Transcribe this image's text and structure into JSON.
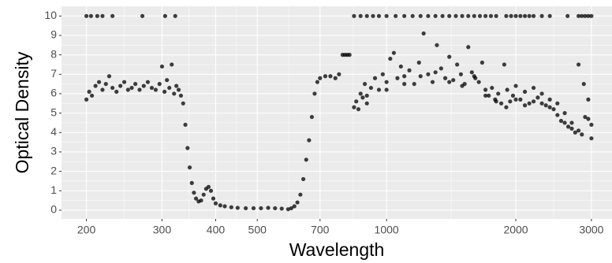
{
  "chart_data": {
    "type": "scatter",
    "x_label": "Wavelength",
    "y_label": "Optical Density",
    "xlog": true,
    "grid": true,
    "color": "#000000",
    "opacity": 0.75,
    "xlim": [
      175,
      3350
    ],
    "ylim": [
      -0.45,
      10.5
    ],
    "xticks": [
      200,
      300,
      400,
      500,
      700,
      1000,
      2000,
      3000
    ],
    "yticks": [
      0,
      1,
      2,
      3,
      4,
      5,
      6,
      7,
      8,
      9,
      10
    ],
    "x": [
      200,
      203,
      206,
      210,
      214,
      218,
      222,
      226,
      230,
      235,
      240,
      245,
      250,
      255,
      260,
      266,
      272,
      278,
      284,
      290,
      296,
      300,
      304,
      308,
      312,
      316,
      320,
      324,
      328,
      332,
      200,
      205,
      212,
      218,
      230,
      270,
      305,
      322,
      336,
      340,
      344,
      348,
      352,
      356,
      360,
      365,
      370,
      375,
      380,
      385,
      390,
      395,
      400,
      410,
      420,
      435,
      450,
      470,
      490,
      510,
      530,
      550,
      570,
      590,
      600,
      610,
      620,
      630,
      640,
      650,
      660,
      670,
      680,
      690,
      700,
      720,
      740,
      760,
      775,
      790,
      800,
      810,
      820,
      840,
      870,
      900,
      930,
      960,
      1000,
      1050,
      1100,
      1150,
      1200,
      1250,
      1300,
      1350,
      1400,
      1450,
      1500,
      1550,
      1600,
      1650,
      1700,
      1750,
      1800,
      1900,
      1950,
      2000,
      2050,
      2100,
      2150,
      2200,
      2300,
      2400,
      2640,
      2800,
      2850,
      2900,
      2950,
      3000,
      840,
      850,
      860,
      870,
      880,
      890,
      900,
      920,
      940,
      960,
      980,
      1000,
      1020,
      1040,
      1060,
      1080,
      1100,
      1130,
      1160,
      1190,
      1220,
      1250,
      1280,
      1310,
      1340,
      1370,
      1400,
      1430,
      1460,
      1490,
      1520,
      1550,
      1580,
      1610,
      1640,
      1670,
      1700,
      1730,
      1760,
      1790,
      1820,
      1850,
      1880,
      1910,
      1940,
      1970,
      2000,
      2050,
      2100,
      2150,
      2200,
      2250,
      2300,
      2350,
      2400,
      2450,
      2500,
      2550,
      2600,
      2650,
      2700,
      2750,
      2800,
      2850,
      2900,
      2950,
      3000,
      3000,
      2950,
      2880,
      900,
      1000,
      1100,
      1200,
      1300,
      1400,
      1500,
      1600,
      1700,
      1800,
      1900,
      2000,
      2100,
      2200,
      2300,
      2400,
      2500,
      2600,
      2700,
      2800
    ],
    "values": [
      5.7,
      6.1,
      5.9,
      6.4,
      6.6,
      6.2,
      6.5,
      6.9,
      6.3,
      6.1,
      6.4,
      6.6,
      6.2,
      6.3,
      6.5,
      6.2,
      6.4,
      6.6,
      6.3,
      6.2,
      6.5,
      7.4,
      6.1,
      6.7,
      6.3,
      7.5,
      6.0,
      6.4,
      6.2,
      5.9,
      10,
      10,
      10,
      10,
      10,
      10,
      10,
      10,
      5.5,
      4.4,
      3.2,
      2.2,
      1.4,
      0.9,
      0.6,
      0.45,
      0.5,
      0.8,
      1.1,
      1.2,
      1.0,
      0.6,
      0.35,
      0.25,
      0.2,
      0.15,
      0.12,
      0.1,
      0.1,
      0.1,
      0.12,
      0.1,
      0.08,
      0.05,
      0.1,
      0.2,
      0.4,
      0.8,
      1.6,
      2.6,
      3.6,
      4.8,
      6.0,
      6.6,
      6.8,
      6.9,
      6.9,
      6.8,
      7.0,
      8.0,
      8.0,
      8.0,
      8.0,
      10,
      10,
      10,
      10,
      10,
      10,
      10,
      10,
      10,
      10,
      10,
      10,
      10,
      10,
      10,
      10,
      10,
      10,
      10,
      10,
      10,
      10,
      10,
      10,
      10,
      10,
      10,
      10,
      10,
      10,
      10,
      10,
      10,
      10,
      10,
      10,
      10,
      5.3,
      5.6,
      5.2,
      6.0,
      5.8,
      6.5,
      5.9,
      6.3,
      6.8,
      6.2,
      7.0,
      6.6,
      7.8,
      8.1,
      6.8,
      7.4,
      6.9,
      7.2,
      6.5,
      7.6,
      9.1,
      7.0,
      6.6,
      8.5,
      7.3,
      6.8,
      7.9,
      6.7,
      7.5,
      7.0,
      6.5,
      8.4,
      7.1,
      6.8,
      6.6,
      7.6,
      6.2,
      5.9,
      6.3,
      5.7,
      6.0,
      5.5,
      7.5,
      6.2,
      5.6,
      5.9,
      6.4,
      5.7,
      6.1,
      5.5,
      6.3,
      5.8,
      6.0,
      5.4,
      5.7,
      5.2,
      4.9,
      4.6,
      4.5,
      4.3,
      4.2,
      4.0,
      7.5,
      3.9,
      4.8,
      5.7,
      3.7,
      4.4,
      4.7,
      6.5,
      5.5,
      6.2,
      6.5,
      6.9,
      7.1,
      6.6,
      6.4,
      6.9,
      5.9,
      5.6,
      5.3,
      5.7,
      5.4,
      5.6,
      5.5,
      5.3,
      5.5,
      5.0,
      4.5,
      4.1
    ]
  }
}
